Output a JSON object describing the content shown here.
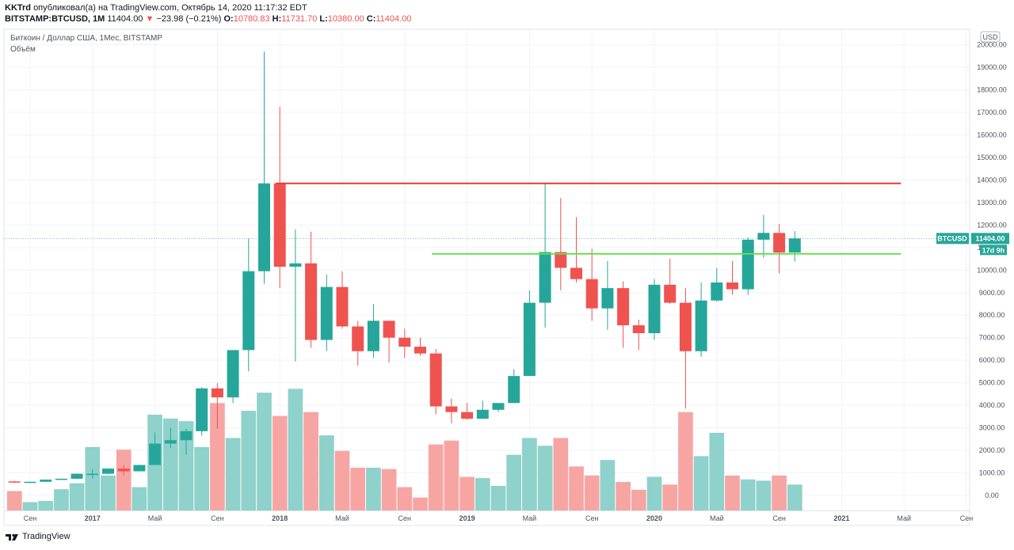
{
  "header": {
    "author": "KKTrd",
    "published_text": "опубликовал(а) на TradingView.com, Октябрь 14, 2020 11:17:32 EDT",
    "symbol_line": "BITSTAMP:BTCUSD, 1M",
    "last": "11404.00",
    "arrow": "▼",
    "change": "−23.98 (−0.21%)",
    "o_label": "O:",
    "o_value": "10780.83",
    "h_label": "H:",
    "h_value": "11731.70",
    "l_label": "L:",
    "l_value": "10380.00",
    "c_label": "C:",
    "c_value": "11404.00"
  },
  "pane": {
    "symbol_title": "Биткоин / Доллар США, 1Мес, BITSTAMP",
    "volume_title": "Объём",
    "currency_badge": "USD",
    "price_tag_symbol": "BTCUSD",
    "price_tag_value": "11404.00",
    "countdown": "17d 9h"
  },
  "footer": {
    "brand": "TradingView"
  },
  "colors": {
    "up": "#26a69a",
    "down": "#ef5350",
    "vol_up": "#8fd1cb",
    "vol_down": "#f7a5a3",
    "resistance": "#e53935",
    "support": "#66dd55"
  },
  "chart_data": {
    "type": "candlestick",
    "symbol": "BTCUSD",
    "interval": "1M",
    "y_axis": {
      "ticks": [
        0,
        1000,
        2000,
        3000,
        4000,
        5000,
        6000,
        7000,
        8000,
        9000,
        10000,
        11000,
        12000,
        13000,
        14000,
        15000,
        16000,
        17000,
        18000,
        19000,
        20000
      ],
      "tick_labels": [
        "0.00",
        "1000.00",
        "2000.00",
        "3000.00",
        "4000.00",
        "5000.00",
        "6000.00",
        "7000.00",
        "8000.00",
        "9000.00",
        "10000.00",
        "11000.00",
        "12000.00",
        "13000.00",
        "14000.00",
        "15000.00",
        "16000.00",
        "17000.00",
        "18000.00",
        "19000.00",
        "20000.00"
      ],
      "range": [
        -500,
        20500
      ]
    },
    "x_axis": {
      "labels": [
        "Сен",
        "2017",
        "Май",
        "Сен",
        "2018",
        "Май",
        "Сен",
        "2019",
        "Май",
        "Сен",
        "2020",
        "Май",
        "Сен",
        "2021",
        "Май",
        "Сен"
      ],
      "months": [
        "2016-09",
        "2017-01",
        "2017-05",
        "2017-09",
        "2018-01",
        "2018-05",
        "2018-09",
        "2019-01",
        "2019-05",
        "2019-09",
        "2020-01",
        "2020-05",
        "2020-09",
        "2021-01",
        "2021-05",
        "2021-09"
      ]
    },
    "candles": [
      {
        "m": "2016-08",
        "o": 620,
        "h": 630,
        "l": 550,
        "c": 575,
        "v": 750
      },
      {
        "m": "2016-09",
        "o": 575,
        "h": 610,
        "l": 570,
        "c": 605,
        "v": 320
      },
      {
        "m": "2016-10",
        "o": 605,
        "h": 710,
        "l": 600,
        "c": 700,
        "v": 370
      },
      {
        "m": "2016-11",
        "o": 700,
        "h": 750,
        "l": 690,
        "c": 740,
        "v": 820
      },
      {
        "m": "2016-12",
        "o": 740,
        "h": 980,
        "l": 730,
        "c": 960,
        "v": 1050
      },
      {
        "m": "2017-01",
        "o": 960,
        "h": 1150,
        "l": 750,
        "c": 960,
        "v": 2450
      },
      {
        "m": "2017-02",
        "o": 960,
        "h": 1200,
        "l": 930,
        "c": 1190,
        "v": 1350
      },
      {
        "m": "2017-03",
        "o": 1190,
        "h": 1350,
        "l": 890,
        "c": 1070,
        "v": 2350
      },
      {
        "m": "2017-04",
        "o": 1070,
        "h": 1360,
        "l": 1070,
        "c": 1350,
        "v": 900
      },
      {
        "m": "2017-05",
        "o": 1350,
        "h": 2800,
        "l": 1350,
        "c": 2300,
        "v": 3700
      },
      {
        "m": "2017-06",
        "o": 2300,
        "h": 3000,
        "l": 2100,
        "c": 2450,
        "v": 3550
      },
      {
        "m": "2017-07",
        "o": 2450,
        "h": 2950,
        "l": 1800,
        "c": 2850,
        "v": 3450
      },
      {
        "m": "2017-08",
        "o": 2850,
        "h": 4800,
        "l": 2650,
        "c": 4750,
        "v": 2450
      },
      {
        "m": "2017-09",
        "o": 4750,
        "h": 4980,
        "l": 2950,
        "c": 4350,
        "v": 4150
      },
      {
        "m": "2017-10",
        "o": 4350,
        "h": 6450,
        "l": 4100,
        "c": 6450,
        "v": 2800
      },
      {
        "m": "2017-11",
        "o": 6450,
        "h": 11400,
        "l": 5500,
        "c": 9950,
        "v": 3850
      },
      {
        "m": "2017-12",
        "o": 9950,
        "h": 19700,
        "l": 9400,
        "c": 13850,
        "v": 4550
      },
      {
        "m": "2018-01",
        "o": 13850,
        "h": 17250,
        "l": 9200,
        "c": 10150,
        "v": 3650
      },
      {
        "m": "2018-02",
        "o": 10150,
        "h": 11800,
        "l": 5950,
        "c": 10300,
        "v": 4700
      },
      {
        "m": "2018-03",
        "o": 10300,
        "h": 11700,
        "l": 6550,
        "c": 6900,
        "v": 3800
      },
      {
        "m": "2018-04",
        "o": 6900,
        "h": 9800,
        "l": 6400,
        "c": 9250,
        "v": 2900
      },
      {
        "m": "2018-05",
        "o": 9250,
        "h": 9950,
        "l": 7400,
        "c": 7500,
        "v": 2300
      },
      {
        "m": "2018-06",
        "o": 7500,
        "h": 7750,
        "l": 5750,
        "c": 6400,
        "v": 1650
      },
      {
        "m": "2018-07",
        "o": 6400,
        "h": 8500,
        "l": 6100,
        "c": 7750,
        "v": 1650
      },
      {
        "m": "2018-08",
        "o": 7750,
        "h": 7750,
        "l": 5900,
        "c": 7000,
        "v": 1600
      },
      {
        "m": "2018-09",
        "o": 7000,
        "h": 7400,
        "l": 6100,
        "c": 6600,
        "v": 900
      },
      {
        "m": "2018-10",
        "o": 6600,
        "h": 7000,
        "l": 6200,
        "c": 6300,
        "v": 500
      },
      {
        "m": "2018-11",
        "o": 6300,
        "h": 6500,
        "l": 3600,
        "c": 3950,
        "v": 2550
      },
      {
        "m": "2018-12",
        "o": 3950,
        "h": 4300,
        "l": 3200,
        "c": 3700,
        "v": 2700
      },
      {
        "m": "2019-01",
        "o": 3700,
        "h": 4100,
        "l": 3350,
        "c": 3400,
        "v": 1300
      },
      {
        "m": "2019-02",
        "o": 3400,
        "h": 4200,
        "l": 3400,
        "c": 3800,
        "v": 1250
      },
      {
        "m": "2019-03",
        "o": 3800,
        "h": 4100,
        "l": 3700,
        "c": 4100,
        "v": 950
      },
      {
        "m": "2019-04",
        "o": 4100,
        "h": 5600,
        "l": 4100,
        "c": 5300,
        "v": 2150
      },
      {
        "m": "2019-05",
        "o": 5300,
        "h": 9100,
        "l": 5300,
        "c": 8550,
        "v": 2800
      },
      {
        "m": "2019-06",
        "o": 8550,
        "h": 13850,
        "l": 7450,
        "c": 10800,
        "v": 2500
      },
      {
        "m": "2019-07",
        "o": 10800,
        "h": 13200,
        "l": 9100,
        "c": 10100,
        "v": 2800
      },
      {
        "m": "2019-08",
        "o": 10100,
        "h": 12350,
        "l": 9450,
        "c": 9600,
        "v": 1700
      },
      {
        "m": "2019-09",
        "o": 9600,
        "h": 10950,
        "l": 7750,
        "c": 8300,
        "v": 1350
      },
      {
        "m": "2019-10",
        "o": 8300,
        "h": 10400,
        "l": 7350,
        "c": 9200,
        "v": 1950
      },
      {
        "m": "2019-11",
        "o": 9200,
        "h": 9500,
        "l": 6550,
        "c": 7550,
        "v": 1100
      },
      {
        "m": "2019-12",
        "o": 7550,
        "h": 7800,
        "l": 6450,
        "c": 7200,
        "v": 800
      },
      {
        "m": "2020-01",
        "o": 7200,
        "h": 9600,
        "l": 6900,
        "c": 9350,
        "v": 1300
      },
      {
        "m": "2020-02",
        "o": 9350,
        "h": 10500,
        "l": 8500,
        "c": 8550,
        "v": 1000
      },
      {
        "m": "2020-03",
        "o": 8550,
        "h": 9200,
        "l": 3850,
        "c": 6400,
        "v": 3800
      },
      {
        "m": "2020-04",
        "o": 6400,
        "h": 9450,
        "l": 6150,
        "c": 8650,
        "v": 2100
      },
      {
        "m": "2020-05",
        "o": 8650,
        "h": 10100,
        "l": 8600,
        "c": 9450,
        "v": 3000
      },
      {
        "m": "2020-06",
        "o": 9450,
        "h": 10400,
        "l": 8900,
        "c": 9150,
        "v": 1350
      },
      {
        "m": "2020-07",
        "o": 9150,
        "h": 11450,
        "l": 8900,
        "c": 11350,
        "v": 1200
      },
      {
        "m": "2020-08",
        "o": 11350,
        "h": 12450,
        "l": 10550,
        "c": 11650,
        "v": 1150
      },
      {
        "m": "2020-09",
        "o": 11650,
        "h": 12050,
        "l": 9850,
        "c": 10780.83,
        "v": 1350
      },
      {
        "m": "2020-10",
        "o": 10780.83,
        "h": 11731.7,
        "l": 10380.0,
        "c": 11404.0,
        "v": 1000
      }
    ],
    "horizontal_lines": [
      {
        "name": "resistance",
        "price": 13850,
        "from": "2018-01",
        "to": "2021-05",
        "color": "#e53935"
      },
      {
        "name": "support",
        "price": 10720,
        "from": "2018-11",
        "to": "2021-05",
        "color": "#66dd55"
      }
    ],
    "last_price": 11404.0,
    "grid": true
  }
}
